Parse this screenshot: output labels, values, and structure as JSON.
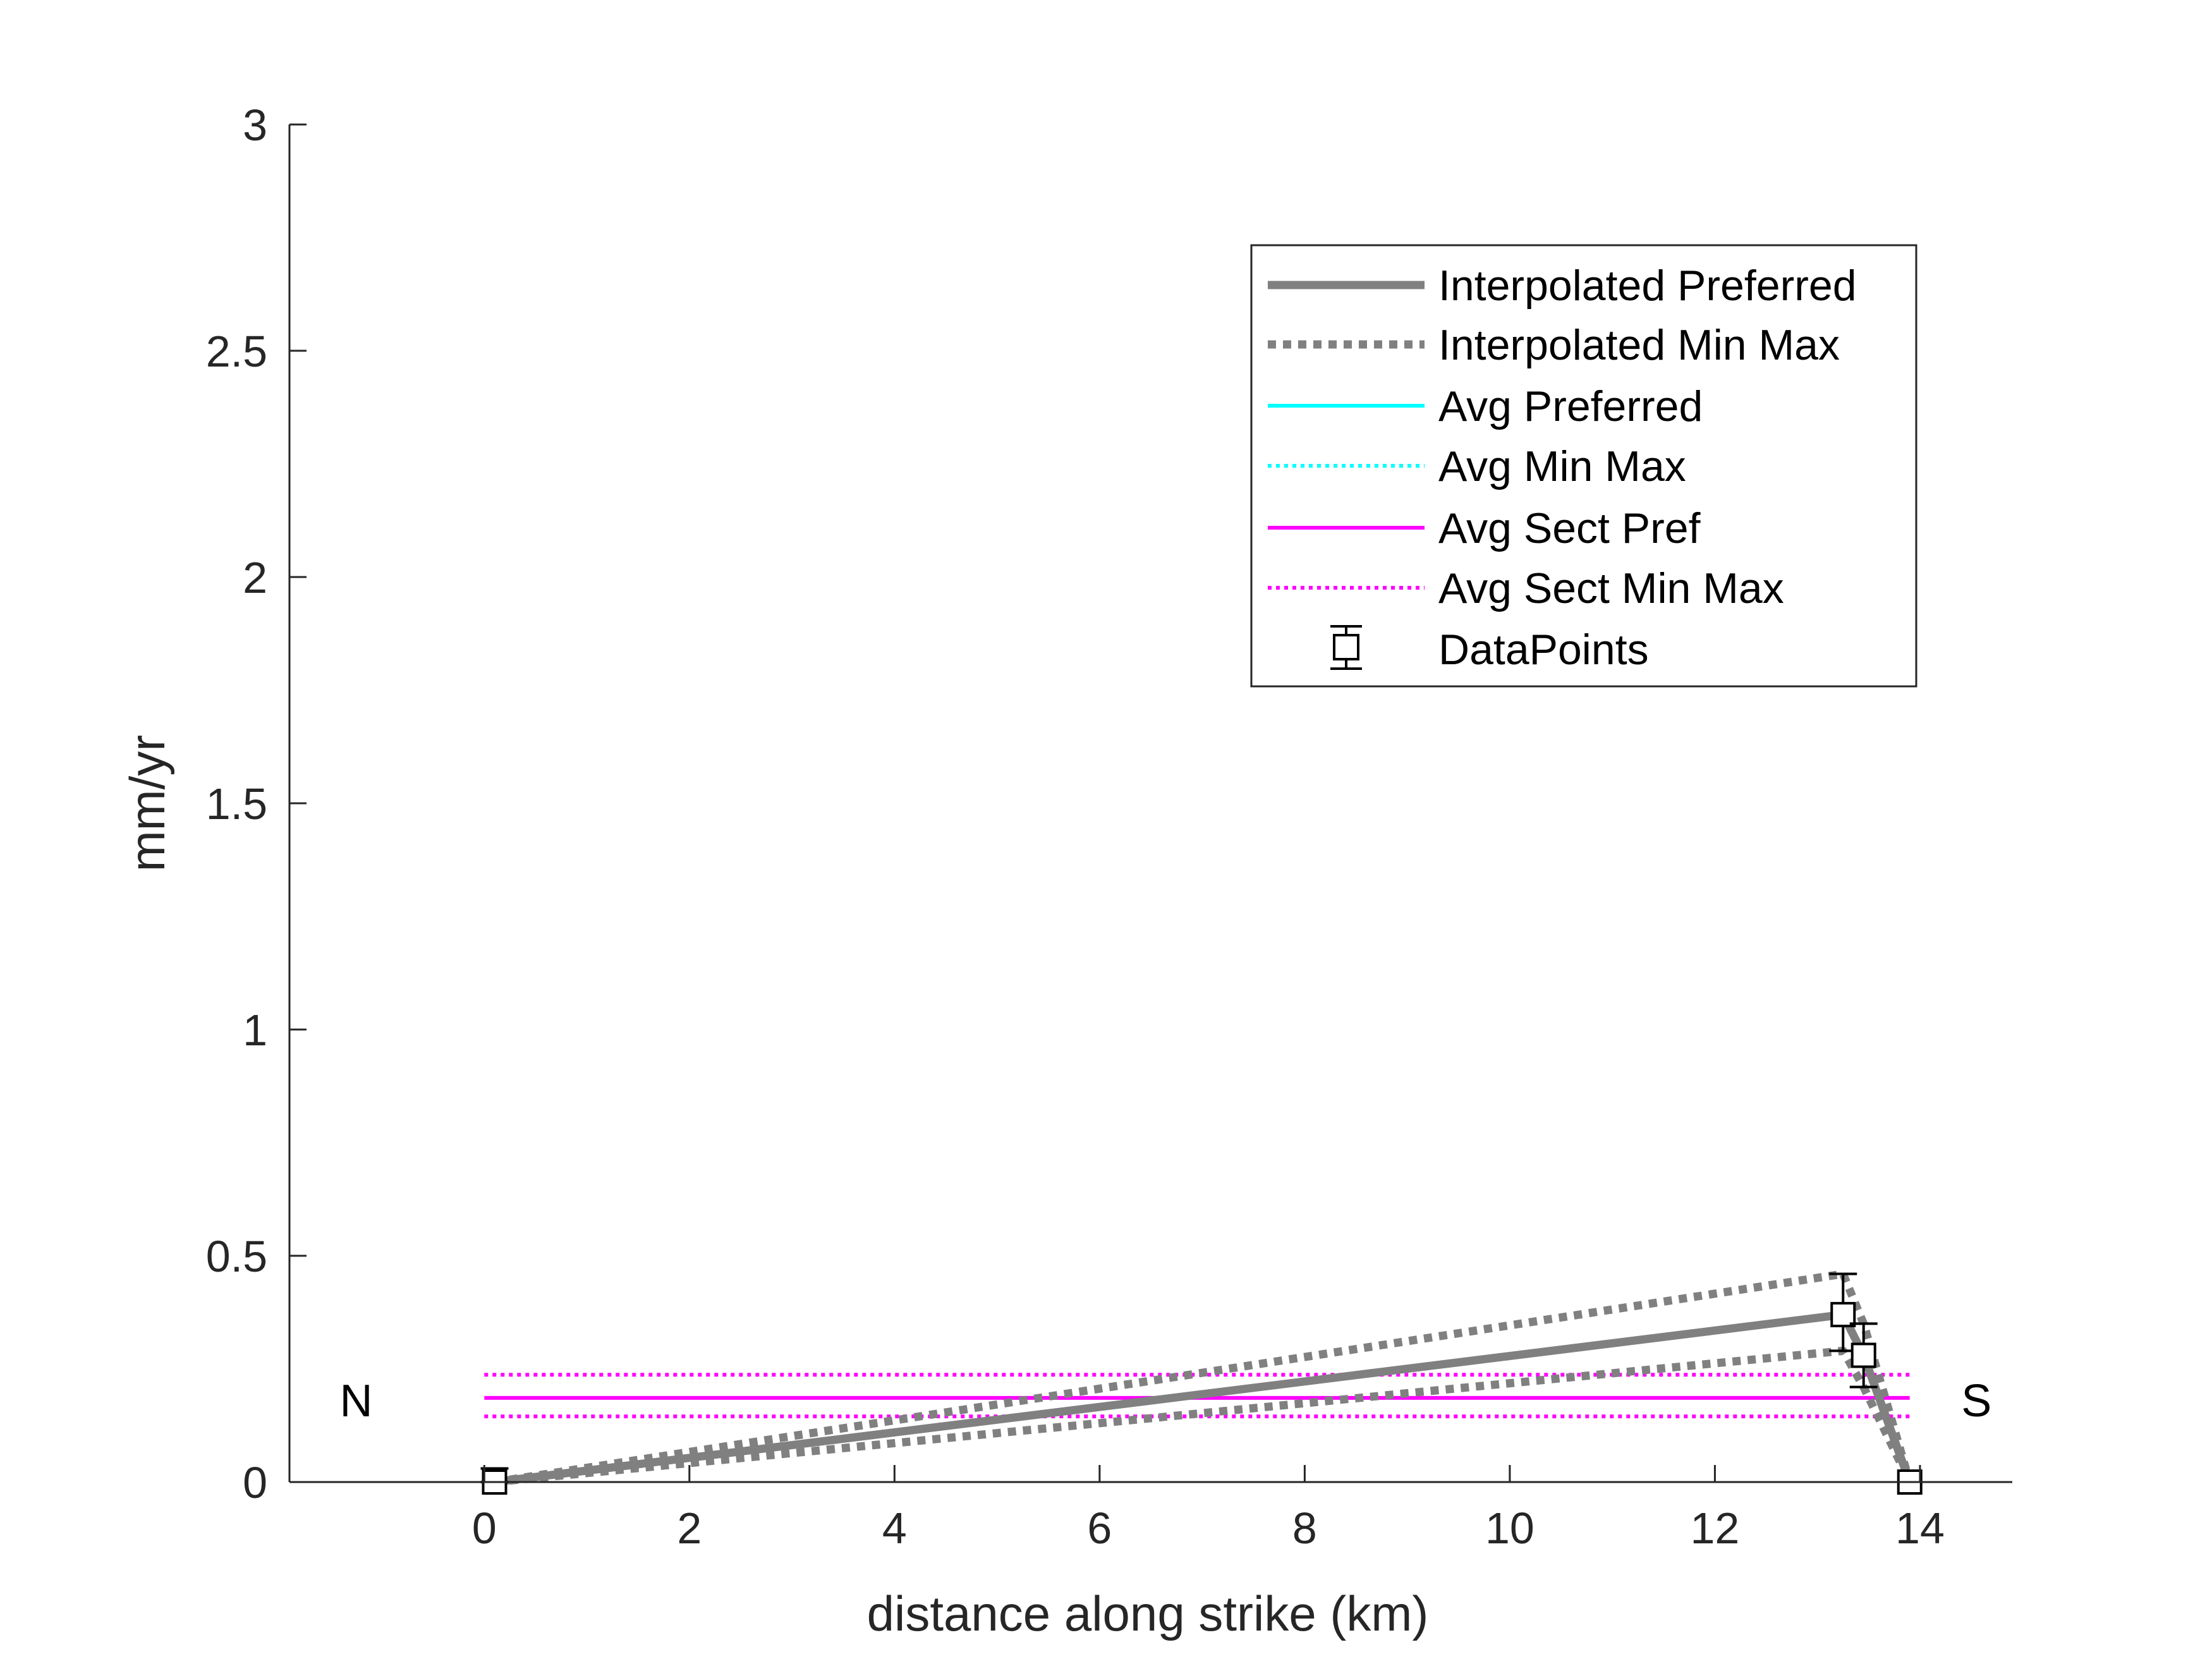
{
  "chart_data": {
    "type": "line",
    "xlabel": "distance along strike (km)",
    "ylabel": "mm/yr",
    "xlim": [
      -1.9,
      14.9
    ],
    "ylim": [
      0,
      3
    ],
    "xticks": [
      0,
      2,
      4,
      6,
      8,
      10,
      12,
      14
    ],
    "yticks": [
      0,
      0.5,
      1,
      1.5,
      2,
      2.5,
      3
    ],
    "xtick_labels": [
      "0",
      "2",
      "4",
      "6",
      "8",
      "10",
      "12",
      "14"
    ],
    "ytick_labels": [
      "0",
      "0.5",
      "1",
      "1.5",
      "2",
      "2.5",
      "3"
    ],
    "grid": false,
    "legend_position": "top-right",
    "annotations": [
      {
        "text": "N",
        "x": -1.25,
        "y": 0.18
      },
      {
        "text": "S",
        "x": 14.55,
        "y": 0.18
      }
    ],
    "series": [
      {
        "name": "Interpolated Preferred",
        "color": "#808080",
        "style": "solid-thick",
        "x": [
          0.1,
          13.25,
          13.45,
          13.9
        ],
        "y": [
          0,
          0.37,
          0.28,
          0
        ]
      },
      {
        "name": "Interpolated Min Max",
        "color": "#808080",
        "style": "dotted-thick",
        "x": [
          0.1,
          13.25,
          13.45,
          13.9
        ],
        "y": [
          0,
          0.46,
          0.35,
          0
        ]
      },
      {
        "name": "",
        "color": "#808080",
        "style": "dotted-thick",
        "x": [
          0.1,
          13.25,
          13.45,
          13.9
        ],
        "y": [
          0,
          0.29,
          0.21,
          0
        ]
      },
      {
        "name": "Avg Preferred",
        "color": "#00FFFF",
        "style": "solid",
        "x": [],
        "y": []
      },
      {
        "name": "Avg Min Max",
        "color": "#00FFFF",
        "style": "dotted",
        "x": [],
        "y": []
      },
      {
        "name": "Avg Sect Pref",
        "color": "#FF00FF",
        "style": "solid",
        "x": [
          0,
          13.9
        ],
        "y": [
          0.186,
          0.186
        ]
      },
      {
        "name": "Avg Sect Min Max",
        "color": "#FF00FF",
        "style": "dotted",
        "x": [
          0,
          13.9
        ],
        "y": [
          0.237,
          0.237
        ]
      },
      {
        "name": "",
        "color": "#FF00FF",
        "style": "dotted",
        "x": [
          0,
          13.9
        ],
        "y": [
          0.145,
          0.145
        ]
      }
    ],
    "datapoints": {
      "name": "DataPoints",
      "color": "#000000",
      "marker": "square",
      "points": [
        {
          "x": 0.1,
          "y": 0,
          "low": 0,
          "high": 0.03
        },
        {
          "x": 13.25,
          "y": 0.37,
          "low": 0.29,
          "high": 0.46
        },
        {
          "x": 13.45,
          "y": 0.28,
          "low": 0.21,
          "high": 0.35
        },
        {
          "x": 13.9,
          "y": 0,
          "low": 0,
          "high": 0
        }
      ]
    }
  }
}
